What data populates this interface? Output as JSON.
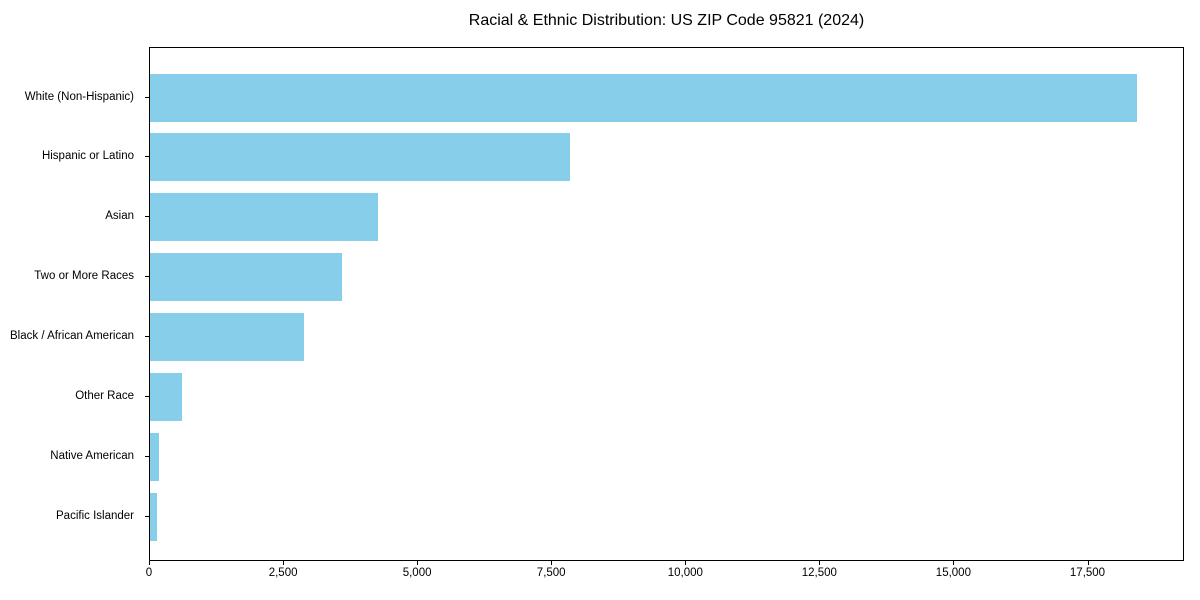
{
  "chart_data": {
    "type": "bar",
    "orientation": "horizontal",
    "title": "Racial & Ethnic Distribution: US ZIP Code 95821 (2024)",
    "categories": [
      "White (Non-Hispanic)",
      "Hispanic or Latino",
      "Asian",
      "Two or More Races",
      "Black / African American",
      "Other Race",
      "Native American",
      "Pacific Islander"
    ],
    "values": [
      18400,
      7840,
      4250,
      3580,
      2880,
      590,
      170,
      130
    ],
    "xlabel": "",
    "ylabel": "",
    "xlim": [
      0,
      19300
    ],
    "x_ticks": [
      0,
      2500,
      5000,
      7500,
      10000,
      12500,
      15000,
      17500
    ],
    "x_tick_labels": [
      "0",
      "2,500",
      "5,000",
      "7,500",
      "10,000",
      "12,500",
      "15,000",
      "17,500"
    ],
    "bar_color": "#87CEEB",
    "frame_color": "#000000",
    "background_color": "#ffffff",
    "grid": false,
    "legend": null
  }
}
